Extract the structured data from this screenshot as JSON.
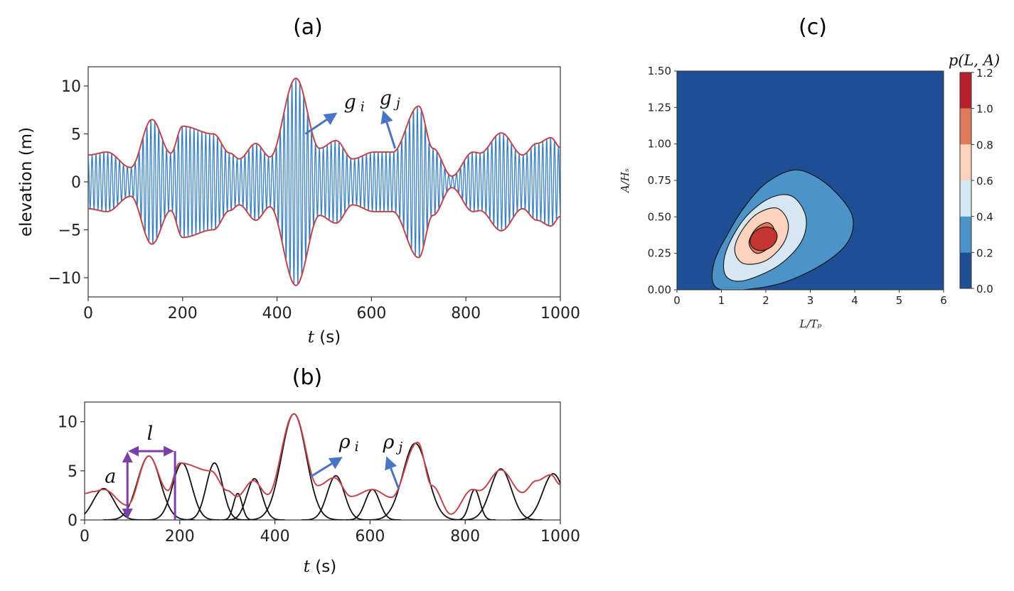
{
  "chart_data": [
    {
      "panel": "(a)",
      "type": "line",
      "xlabel_var": "t",
      "xlabel_unit": " (s)",
      "ylabel": "elevation (m)",
      "xlim": [
        0,
        1000
      ],
      "ylim": [
        -12,
        12
      ],
      "xticks": [
        0,
        200,
        400,
        600,
        800,
        1000
      ],
      "yticks": [
        -10,
        -5,
        0,
        5,
        10
      ],
      "ytick_labels": [
        "−10",
        "−5",
        "0",
        "5",
        "10"
      ],
      "colors": {
        "signal": "#3a7fc0",
        "envelope": "#c0464a",
        "arrow": "#4a74c4"
      },
      "envelope": {
        "t": [
          0,
          40,
          90,
          135,
          175,
          200,
          265,
          300,
          320,
          355,
          385,
          440,
          490,
          525,
          560,
          605,
          645,
          700,
          730,
          770,
          815,
          830,
          875,
          920,
          950,
          980,
          1000
        ],
        "amp": [
          2.8,
          3.1,
          1.5,
          6.5,
          3.0,
          5.8,
          5.0,
          3.0,
          2.4,
          4.0,
          2.6,
          10.8,
          3.5,
          4.3,
          2.4,
          3.1,
          3.1,
          7.9,
          3.5,
          0.6,
          3.1,
          3.0,
          5.1,
          2.8,
          4.0,
          4.6,
          3.6
        ]
      },
      "annotations": [
        {
          "base": "g",
          "sub": "i",
          "x": 460,
          "y": 5.0
        },
        {
          "base": "g",
          "sub": "j",
          "x": 650,
          "y": 3.5
        }
      ]
    },
    {
      "panel": "(b)",
      "type": "line",
      "xlabel_var": "t",
      "xlabel_unit": " (s)",
      "xlim": [
        0,
        1000
      ],
      "ylim": [
        0,
        12
      ],
      "xticks": [
        0,
        200,
        400,
        600,
        800,
        1000
      ],
      "yticks": [
        0,
        5,
        10
      ],
      "colors": {
        "envelope": "#c0464a",
        "groups": "#111111",
        "marker": "#7b3fa8",
        "arrow": "#4a74c4"
      },
      "envelope": {
        "t": [
          0,
          20,
          40,
          90,
          135,
          175,
          200,
          265,
          300,
          320,
          355,
          385,
          440,
          490,
          525,
          560,
          605,
          645,
          700,
          730,
          770,
          815,
          830,
          875,
          920,
          950,
          980,
          1000
        ],
        "amp": [
          2.7,
          2.9,
          3.1,
          1.5,
          6.5,
          3.0,
          5.8,
          5.0,
          3.0,
          2.4,
          4.0,
          2.6,
          10.8,
          3.5,
          4.3,
          2.4,
          3.1,
          2.3,
          7.9,
          3.5,
          0.6,
          3.1,
          3.0,
          5.1,
          2.8,
          4.0,
          4.6,
          3.6
        ]
      },
      "groups": [
        {
          "center": 40,
          "height": 3.2,
          "width": 22
        },
        {
          "center": 135,
          "height": 6.5,
          "width": 24
        },
        {
          "center": 205,
          "height": 5.8,
          "width": 20
        },
        {
          "center": 273,
          "height": 5.8,
          "width": 17
        },
        {
          "center": 322,
          "height": 2.7,
          "width": 9
        },
        {
          "center": 357,
          "height": 4.2,
          "width": 16
        },
        {
          "center": 440,
          "height": 10.8,
          "width": 26
        },
        {
          "center": 528,
          "height": 4.5,
          "width": 18
        },
        {
          "center": 605,
          "height": 3.1,
          "width": 15
        },
        {
          "center": 695,
          "height": 7.8,
          "width": 26
        },
        {
          "center": 820,
          "height": 3.1,
          "width": 11
        },
        {
          "center": 875,
          "height": 5.2,
          "width": 22
        },
        {
          "center": 985,
          "height": 4.7,
          "width": 22
        }
      ],
      "amplitude_marker": {
        "label": "a",
        "x": 90,
        "y0": 0,
        "y1": 7
      },
      "length_marker": {
        "label": "l",
        "x0": 90,
        "x1": 190,
        "y": 7
      },
      "annotations": [
        {
          "base": "ρ",
          "sub": "i",
          "x": 475,
          "y": 4.4
        },
        {
          "base": "ρ",
          "sub": "j",
          "x": 660,
          "y": 3.2
        }
      ]
    },
    {
      "panel": "(c)",
      "type": "heatmap",
      "xlabel": "L/Tₚ",
      "ylabel": "A/Hₛ",
      "colorbar_label": "p(L, A)",
      "xlim": [
        0,
        6
      ],
      "ylim": [
        0,
        1.5
      ],
      "xticks": [
        0,
        1,
        2,
        3,
        4,
        5,
        6
      ],
      "yticks": [
        0.0,
        0.25,
        0.5,
        0.75,
        1.0,
        1.25,
        1.5
      ],
      "ytick_labels": [
        "0.00",
        "0.25",
        "0.50",
        "0.75",
        "1.00",
        "1.25",
        "1.50"
      ],
      "colorbar_ticks": [
        "0.0",
        "0.2",
        "0.4",
        "0.6",
        "0.8",
        "1.0",
        "1.2"
      ],
      "levels": [
        0.0,
        0.2,
        0.4,
        0.6,
        0.8,
        1.0,
        1.2
      ],
      "level_colors": [
        "#1f4e94",
        "#4c94c7",
        "#d6e7f1",
        "#fbd3bd",
        "#e07a5c",
        "#c53530"
      ],
      "colorbar_colors": [
        "#1f4e94",
        "#4c94c7",
        "#d6e7f1",
        "#fbd3bd",
        "#e07a5c",
        "#b5202a"
      ],
      "contours": [
        {
          "level": 0.2,
          "points": [
            [
              0.8,
              0.06
            ],
            [
              0.85,
              0.2
            ],
            [
              1.1,
              0.36
            ],
            [
              1.5,
              0.56
            ],
            [
              2.0,
              0.73
            ],
            [
              2.6,
              0.82
            ],
            [
              3.1,
              0.78
            ],
            [
              3.6,
              0.66
            ],
            [
              3.95,
              0.5
            ],
            [
              3.85,
              0.33
            ],
            [
              3.3,
              0.18
            ],
            [
              2.4,
              0.05
            ],
            [
              1.5,
              0.0
            ],
            [
              1.0,
              0.0
            ]
          ]
        },
        {
          "level": 0.4,
          "points": [
            [
              1.05,
              0.15
            ],
            [
              1.15,
              0.3
            ],
            [
              1.55,
              0.5
            ],
            [
              2.1,
              0.63
            ],
            [
              2.6,
              0.64
            ],
            [
              2.9,
              0.5
            ],
            [
              2.8,
              0.33
            ],
            [
              2.3,
              0.17
            ],
            [
              1.6,
              0.07
            ],
            [
              1.2,
              0.07
            ]
          ]
        },
        {
          "level": 0.6,
          "points": [
            [
              1.3,
              0.27
            ],
            [
              1.45,
              0.4
            ],
            [
              1.8,
              0.52
            ],
            [
              2.25,
              0.56
            ],
            [
              2.5,
              0.46
            ],
            [
              2.4,
              0.32
            ],
            [
              2.0,
              0.2
            ],
            [
              1.5,
              0.18
            ]
          ]
        },
        {
          "level": 0.8,
          "points": [
            [
              1.62,
              0.32
            ],
            [
              1.78,
              0.42
            ],
            [
              2.05,
              0.46
            ],
            [
              2.2,
              0.4
            ],
            [
              2.1,
              0.3
            ],
            [
              1.8,
              0.25
            ]
          ]
        }
      ],
      "peak": {
        "center": [
          1.95,
          0.35
        ],
        "rx": 0.32,
        "ry": 0.075,
        "rotate_deg": -28
      }
    }
  ]
}
